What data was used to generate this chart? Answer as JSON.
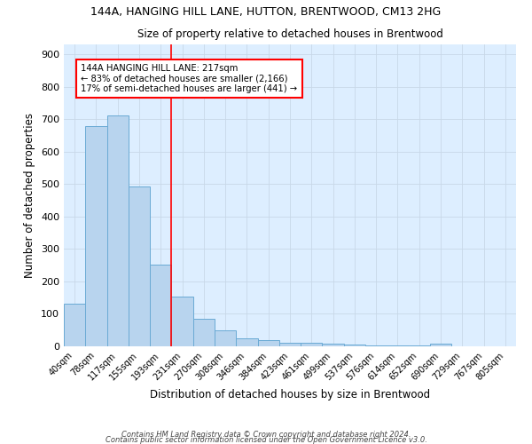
{
  "title1": "144A, HANGING HILL LANE, HUTTON, BRENTWOOD, CM13 2HG",
  "title2": "Size of property relative to detached houses in Brentwood",
  "xlabel": "Distribution of detached houses by size in Brentwood",
  "ylabel": "Number of detached properties",
  "bar_labels": [
    "40sqm",
    "78sqm",
    "117sqm",
    "155sqm",
    "193sqm",
    "231sqm",
    "270sqm",
    "308sqm",
    "346sqm",
    "384sqm",
    "423sqm",
    "461sqm",
    "499sqm",
    "537sqm",
    "576sqm",
    "614sqm",
    "652sqm",
    "690sqm",
    "729sqm",
    "767sqm",
    "805sqm"
  ],
  "bar_values": [
    130,
    678,
    710,
    492,
    252,
    152,
    84,
    50,
    25,
    20,
    10,
    10,
    8,
    5,
    3,
    3,
    2,
    8,
    0,
    0,
    0
  ],
  "bar_color": "#b8d4ee",
  "bar_edge_color": "#6aaad4",
  "background_color": "#ddeeff",
  "grid_color": "#c8d8e8",
  "red_line_x": 4.5,
  "annotation_line1": "144A HANGING HILL LANE: 217sqm",
  "annotation_line2": "← 83% of detached houses are smaller (2,166)",
  "annotation_line3": "17% of semi-detached houses are larger (441) →",
  "ylim": [
    0,
    930
  ],
  "yticks": [
    0,
    100,
    200,
    300,
    400,
    500,
    600,
    700,
    800,
    900
  ],
  "footnote1": "Contains HM Land Registry data © Crown copyright and database right 2024.",
  "footnote2": "Contains public sector information licensed under the Open Government Licence v3.0."
}
